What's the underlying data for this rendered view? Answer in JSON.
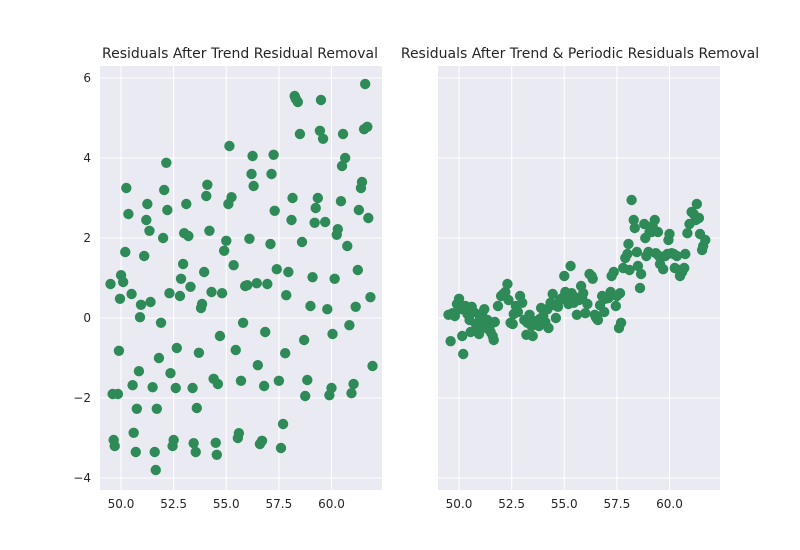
{
  "chart_data": [
    {
      "type": "scatter",
      "title": "Residuals After Trend Residual Removal",
      "xlabel": "",
      "ylabel": "",
      "xlim": [
        49.0,
        62.4
      ],
      "ylim": [
        -4.3,
        6.3
      ],
      "xticks": [
        50.0,
        52.5,
        55.0,
        57.5,
        60.0
      ],
      "xtick_labels": [
        "50.0",
        "52.5",
        "55.0",
        "57.5",
        "60.0"
      ],
      "yticks": [
        -4,
        -2,
        0,
        2,
        4,
        6
      ],
      "ytick_labels": [
        "−4",
        "−2",
        "0",
        "2",
        "4",
        "6"
      ],
      "grid": true,
      "marker_color": "#2e8b57",
      "points": [
        [
          49.5,
          0.85
        ],
        [
          49.6,
          -1.9
        ],
        [
          49.65,
          -3.05
        ],
        [
          49.7,
          -3.2
        ],
        [
          49.85,
          -1.9
        ],
        [
          49.9,
          -0.82
        ],
        [
          49.95,
          0.48
        ],
        [
          50.0,
          1.07
        ],
        [
          50.1,
          0.9
        ],
        [
          50.2,
          1.65
        ],
        [
          50.25,
          3.25
        ],
        [
          50.35,
          2.6
        ],
        [
          50.5,
          0.6
        ],
        [
          50.55,
          -1.68
        ],
        [
          50.6,
          -2.87
        ],
        [
          50.7,
          -3.35
        ],
        [
          50.75,
          -2.27
        ],
        [
          50.85,
          -1.33
        ],
        [
          50.9,
          0.02
        ],
        [
          50.95,
          0.33
        ],
        [
          51.1,
          1.55
        ],
        [
          51.2,
          2.45
        ],
        [
          51.25,
          2.85
        ],
        [
          51.35,
          2.18
        ],
        [
          51.4,
          0.4
        ],
        [
          51.5,
          -1.73
        ],
        [
          51.6,
          -3.35
        ],
        [
          51.65,
          -3.8
        ],
        [
          51.7,
          -2.27
        ],
        [
          51.8,
          -1.0
        ],
        [
          51.9,
          -0.12
        ],
        [
          52.0,
          2.0
        ],
        [
          52.05,
          3.2
        ],
        [
          52.15,
          3.88
        ],
        [
          52.2,
          2.7
        ],
        [
          52.3,
          0.62
        ],
        [
          52.35,
          -1.38
        ],
        [
          52.45,
          -3.2
        ],
        [
          52.5,
          -3.05
        ],
        [
          52.6,
          -1.75
        ],
        [
          52.65,
          -0.75
        ],
        [
          52.8,
          0.55
        ],
        [
          52.85,
          0.98
        ],
        [
          52.95,
          1.35
        ],
        [
          53.0,
          2.12
        ],
        [
          53.1,
          2.85
        ],
        [
          53.2,
          2.05
        ],
        [
          53.3,
          0.78
        ],
        [
          53.4,
          -1.75
        ],
        [
          53.45,
          -3.13
        ],
        [
          53.55,
          -3.35
        ],
        [
          53.6,
          -2.25
        ],
        [
          53.7,
          -0.87
        ],
        [
          53.8,
          0.25
        ],
        [
          53.85,
          0.35
        ],
        [
          53.95,
          1.15
        ],
        [
          54.05,
          3.05
        ],
        [
          54.1,
          3.33
        ],
        [
          54.2,
          2.18
        ],
        [
          54.3,
          0.65
        ],
        [
          54.4,
          -1.52
        ],
        [
          54.5,
          -3.12
        ],
        [
          54.55,
          -3.42
        ],
        [
          54.6,
          -1.65
        ],
        [
          54.7,
          -0.45
        ],
        [
          54.8,
          0.62
        ],
        [
          54.9,
          1.68
        ],
        [
          55.0,
          1.93
        ],
        [
          55.1,
          2.85
        ],
        [
          55.15,
          4.3
        ],
        [
          55.25,
          3.02
        ],
        [
          55.35,
          1.32
        ],
        [
          55.45,
          -0.8
        ],
        [
          55.55,
          -3.0
        ],
        [
          55.6,
          -2.88
        ],
        [
          55.7,
          -1.57
        ],
        [
          55.8,
          -0.12
        ],
        [
          55.9,
          0.8
        ],
        [
          56.0,
          0.82
        ],
        [
          56.1,
          1.98
        ],
        [
          56.2,
          3.6
        ],
        [
          56.25,
          4.05
        ],
        [
          56.3,
          3.3
        ],
        [
          56.45,
          0.87
        ],
        [
          56.5,
          -1.18
        ],
        [
          56.6,
          -3.15
        ],
        [
          56.7,
          -3.07
        ],
        [
          56.8,
          -1.7
        ],
        [
          56.85,
          -0.35
        ],
        [
          56.95,
          0.85
        ],
        [
          57.1,
          1.85
        ],
        [
          57.15,
          3.6
        ],
        [
          57.25,
          4.08
        ],
        [
          57.3,
          2.68
        ],
        [
          57.4,
          1.22
        ],
        [
          57.5,
          -1.57
        ],
        [
          57.6,
          -3.25
        ],
        [
          57.7,
          -2.65
        ],
        [
          57.8,
          -0.88
        ],
        [
          57.85,
          0.57
        ],
        [
          57.95,
          1.15
        ],
        [
          58.1,
          2.45
        ],
        [
          58.15,
          3.0
        ],
        [
          58.25,
          5.55
        ],
        [
          58.3,
          5.48
        ],
        [
          58.4,
          5.4
        ],
        [
          58.5,
          4.6
        ],
        [
          58.6,
          1.9
        ],
        [
          58.7,
          -0.55
        ],
        [
          58.75,
          -1.95
        ],
        [
          58.85,
          -1.55
        ],
        [
          59.0,
          0.3
        ],
        [
          59.1,
          1.02
        ],
        [
          59.2,
          2.38
        ],
        [
          59.25,
          2.75
        ],
        [
          59.35,
          3.0
        ],
        [
          59.45,
          4.68
        ],
        [
          59.5,
          5.45
        ],
        [
          59.6,
          4.48
        ],
        [
          59.7,
          2.4
        ],
        [
          59.8,
          0.22
        ],
        [
          59.9,
          -1.93
        ],
        [
          60.0,
          -1.75
        ],
        [
          60.05,
          -0.4
        ],
        [
          60.15,
          0.98
        ],
        [
          60.25,
          2.08
        ],
        [
          60.3,
          2.22
        ],
        [
          60.45,
          2.92
        ],
        [
          60.5,
          3.8
        ],
        [
          60.55,
          4.6
        ],
        [
          60.65,
          4.0
        ],
        [
          60.75,
          1.8
        ],
        [
          60.85,
          -0.18
        ],
        [
          60.95,
          -1.88
        ],
        [
          61.05,
          -1.65
        ],
        [
          61.15,
          0.28
        ],
        [
          61.25,
          1.2
        ],
        [
          61.3,
          2.7
        ],
        [
          61.4,
          3.25
        ],
        [
          61.45,
          3.4
        ],
        [
          61.55,
          4.72
        ],
        [
          61.6,
          5.85
        ],
        [
          61.7,
          4.78
        ],
        [
          61.75,
          2.5
        ],
        [
          61.85,
          0.52
        ],
        [
          61.95,
          -1.2
        ]
      ]
    },
    {
      "type": "scatter",
      "title": "Residuals After Trend & Periodic Residuals Removal",
      "xlabel": "",
      "ylabel": "",
      "xlim": [
        49.0,
        62.4
      ],
      "ylim": [
        -4.3,
        6.3
      ],
      "xticks": [
        50.0,
        52.5,
        55.0,
        57.5,
        60.0
      ],
      "xtick_labels": [
        "50.0",
        "52.5",
        "55.0",
        "57.5",
        "60.0"
      ],
      "yticks": [
        -4,
        -2,
        0,
        2,
        4,
        6
      ],
      "ytick_labels": [
        "",
        "",
        "",
        "",
        "",
        ""
      ],
      "grid": true,
      "marker_color": "#2e8b57",
      "points": [
        [
          49.5,
          0.08
        ],
        [
          49.6,
          -0.58
        ],
        [
          49.7,
          0.12
        ],
        [
          49.8,
          0.05
        ],
        [
          49.9,
          0.35
        ],
        [
          50.0,
          0.48
        ],
        [
          50.1,
          0.22
        ],
        [
          50.15,
          -0.45
        ],
        [
          50.2,
          -0.9
        ],
        [
          50.3,
          0.3
        ],
        [
          50.4,
          0.1
        ],
        [
          50.5,
          -0.05
        ],
        [
          50.55,
          -0.35
        ],
        [
          50.6,
          0.28
        ],
        [
          50.7,
          0.15
        ],
        [
          50.8,
          -0.15
        ],
        [
          50.85,
          -0.3
        ],
        [
          50.95,
          -0.4
        ],
        [
          51.0,
          0.0
        ],
        [
          51.1,
          0.12
        ],
        [
          51.15,
          -0.15
        ],
        [
          51.2,
          0.22
        ],
        [
          51.3,
          -0.25
        ],
        [
          51.35,
          -0.05
        ],
        [
          51.45,
          -0.2
        ],
        [
          51.5,
          -0.35
        ],
        [
          51.6,
          -0.45
        ],
        [
          51.65,
          -0.55
        ],
        [
          51.7,
          -0.1
        ],
        [
          51.85,
          0.3
        ],
        [
          52.0,
          0.55
        ],
        [
          52.1,
          0.6
        ],
        [
          52.2,
          0.65
        ],
        [
          52.3,
          0.85
        ],
        [
          52.35,
          0.45
        ],
        [
          52.45,
          -0.12
        ],
        [
          52.55,
          -0.15
        ],
        [
          52.6,
          0.1
        ],
        [
          52.7,
          0.3
        ],
        [
          52.8,
          0.15
        ],
        [
          52.9,
          0.55
        ],
        [
          53.0,
          0.38
        ],
        [
          53.1,
          -0.05
        ],
        [
          53.2,
          -0.42
        ],
        [
          53.25,
          -0.12
        ],
        [
          53.35,
          0.08
        ],
        [
          53.45,
          -0.2
        ],
        [
          53.5,
          -0.45
        ],
        [
          53.6,
          -0.08
        ],
        [
          53.7,
          -0.12
        ],
        [
          53.8,
          -0.2
        ],
        [
          53.85,
          -0.02
        ],
        [
          53.9,
          0.25
        ],
        [
          54.0,
          0.05
        ],
        [
          54.1,
          -0.1
        ],
        [
          54.2,
          0.22
        ],
        [
          54.25,
          -0.25
        ],
        [
          54.35,
          0.38
        ],
        [
          54.45,
          0.6
        ],
        [
          54.55,
          0.32
        ],
        [
          54.6,
          0.0
        ],
        [
          54.7,
          0.28
        ],
        [
          54.8,
          0.45
        ],
        [
          54.9,
          0.5
        ],
        [
          55.0,
          1.05
        ],
        [
          55.05,
          0.65
        ],
        [
          55.1,
          0.55
        ],
        [
          55.2,
          0.35
        ],
        [
          55.3,
          1.3
        ],
        [
          55.35,
          0.62
        ],
        [
          55.45,
          0.38
        ],
        [
          55.5,
          0.52
        ],
        [
          55.6,
          0.08
        ],
        [
          55.7,
          0.45
        ],
        [
          55.8,
          0.8
        ],
        [
          55.85,
          0.5
        ],
        [
          55.9,
          0.62
        ],
        [
          56.0,
          0.12
        ],
        [
          56.1,
          0.35
        ],
        [
          56.2,
          1.1
        ],
        [
          56.3,
          1.05
        ],
        [
          56.35,
          0.98
        ],
        [
          56.45,
          0.08
        ],
        [
          56.5,
          0.02
        ],
        [
          56.55,
          -0.02
        ],
        [
          56.6,
          -0.05
        ],
        [
          56.7,
          0.32
        ],
        [
          56.8,
          0.55
        ],
        [
          56.9,
          0.15
        ],
        [
          56.95,
          0.48
        ],
        [
          57.1,
          0.5
        ],
        [
          57.2,
          0.65
        ],
        [
          57.25,
          1.05
        ],
        [
          57.35,
          1.15
        ],
        [
          57.45,
          0.3
        ],
        [
          57.5,
          0.55
        ],
        [
          57.6,
          -0.25
        ],
        [
          57.65,
          0.62
        ],
        [
          57.7,
          -0.12
        ],
        [
          57.8,
          1.25
        ],
        [
          57.9,
          1.5
        ],
        [
          58.0,
          1.6
        ],
        [
          58.05,
          1.85
        ],
        [
          58.1,
          1.2
        ],
        [
          58.2,
          2.95
        ],
        [
          58.3,
          2.45
        ],
        [
          58.35,
          2.25
        ],
        [
          58.45,
          1.65
        ],
        [
          58.5,
          1.3
        ],
        [
          58.6,
          0.75
        ],
        [
          58.65,
          1.1
        ],
        [
          58.8,
          2.35
        ],
        [
          58.85,
          2.0
        ],
        [
          58.9,
          1.55
        ],
        [
          59.0,
          1.65
        ],
        [
          59.05,
          2.15
        ],
        [
          59.15,
          2.15
        ],
        [
          59.2,
          2.3
        ],
        [
          59.3,
          2.45
        ],
        [
          59.35,
          1.62
        ],
        [
          59.45,
          2.15
        ],
        [
          59.5,
          1.55
        ],
        [
          59.55,
          1.35
        ],
        [
          59.7,
          1.22
        ],
        [
          59.8,
          1.55
        ],
        [
          59.9,
          1.6
        ],
        [
          59.95,
          1.95
        ],
        [
          60.0,
          2.1
        ],
        [
          60.1,
          1.62
        ],
        [
          60.2,
          1.6
        ],
        [
          60.25,
          1.25
        ],
        [
          60.35,
          1.55
        ],
        [
          60.45,
          1.2
        ],
        [
          60.5,
          1.05
        ],
        [
          60.6,
          1.15
        ],
        [
          60.7,
          1.25
        ],
        [
          60.75,
          1.6
        ],
        [
          60.85,
          2.12
        ],
        [
          60.95,
          2.35
        ],
        [
          61.05,
          2.65
        ],
        [
          61.15,
          2.6
        ],
        [
          61.25,
          2.45
        ],
        [
          61.3,
          2.85
        ],
        [
          61.4,
          2.5
        ],
        [
          61.45,
          2.1
        ],
        [
          61.55,
          1.7
        ],
        [
          61.6,
          1.8
        ],
        [
          61.7,
          1.95
        ]
      ]
    }
  ]
}
